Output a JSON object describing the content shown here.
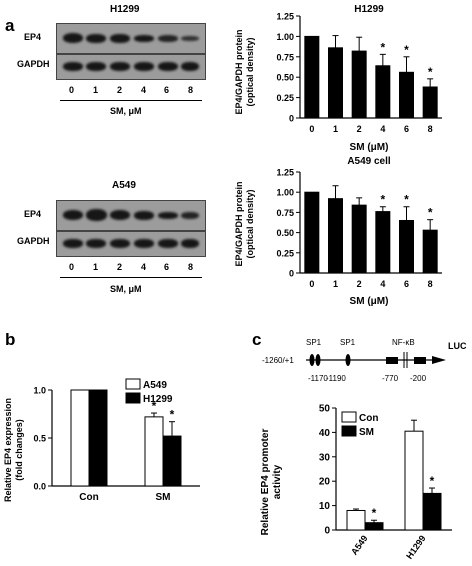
{
  "panel_a": {
    "letter": "a",
    "blot_h1299": {
      "title": "H1299",
      "row_labels": [
        "EP4",
        "GAPDH"
      ],
      "lanes": [
        "0",
        "1",
        "2",
        "4",
        "6",
        "8"
      ],
      "xlabel": "SM, μM"
    },
    "blot_a549": {
      "title": "A549",
      "row_labels": [
        "EP4",
        "GAPDH"
      ],
      "lanes": [
        "0",
        "1",
        "2",
        "4",
        "6",
        "8"
      ],
      "xlabel": "SM, μM"
    }
  },
  "panel_b": {
    "letter": "b"
  },
  "panel_c": {
    "letter": "c",
    "promoter": {
      "range_label": "-1260/+1",
      "site_labels": [
        "SP1",
        "SP1",
        "NF-κB"
      ],
      "position_labels": [
        "-1170",
        "-1190",
        "-770",
        "-200"
      ],
      "reporter": "LUC"
    }
  },
  "chart_data": [
    {
      "type": "bar",
      "title": "H1299",
      "categories": [
        "0",
        "1",
        "2",
        "4",
        "6",
        "8"
      ],
      "values": [
        1.0,
        0.86,
        0.82,
        0.64,
        0.56,
        0.38
      ],
      "errors": [
        0.0,
        0.15,
        0.17,
        0.14,
        0.19,
        0.1
      ],
      "significant": [
        false,
        false,
        false,
        true,
        true,
        true
      ],
      "xlabel": "SM (μM)",
      "ylabel": "EP4/GAPDH protein (optical density)",
      "ylim": [
        0,
        1.25
      ],
      "yticks": [
        "0",
        "0.25",
        "0.50",
        "0.75",
        "1.00",
        "1.25"
      ],
      "bar_color": "#000000"
    },
    {
      "type": "bar",
      "title": "A549 cell",
      "categories": [
        "0",
        "1",
        "2",
        "4",
        "6",
        "8"
      ],
      "values": [
        1.0,
        0.92,
        0.84,
        0.76,
        0.65,
        0.53
      ],
      "errors": [
        0.0,
        0.16,
        0.09,
        0.06,
        0.17,
        0.13
      ],
      "significant": [
        false,
        false,
        false,
        true,
        true,
        true
      ],
      "xlabel": "SM (μM)",
      "ylabel": "EP4/GAPDH protein (optical density)",
      "ylim": [
        0,
        1.25
      ],
      "yticks": [
        "0",
        "0.25",
        "0.50",
        "0.75",
        "1.00",
        "1.25"
      ],
      "bar_color": "#000000"
    },
    {
      "type": "bar",
      "categories": [
        "Con",
        "SM"
      ],
      "series": [
        {
          "name": "A549",
          "values": [
            1.0,
            0.72
          ],
          "errors": [
            0.0,
            0.04
          ],
          "significant": [
            false,
            true
          ],
          "color": "#ffffff"
        },
        {
          "name": "H1299",
          "values": [
            1.0,
            0.52
          ],
          "errors": [
            0.0,
            0.15
          ],
          "significant": [
            false,
            true
          ],
          "color": "#000000"
        }
      ],
      "xlabel": "",
      "ylabel": "Relative EP4 expression (fold changes)",
      "ylim": [
        0,
        1.0
      ],
      "yticks": [
        "0.0",
        "0.5",
        "1.0"
      ],
      "legend": "top-left"
    },
    {
      "type": "bar",
      "categories": [
        "A549",
        "H1299"
      ],
      "series": [
        {
          "name": "Con",
          "values": [
            8,
            40.5
          ],
          "errors": [
            0.6,
            4.5
          ],
          "significant": [
            false,
            false
          ],
          "color": "#ffffff"
        },
        {
          "name": "SM",
          "values": [
            3,
            15
          ],
          "errors": [
            1.0,
            2.2
          ],
          "significant": [
            true,
            true
          ],
          "color": "#000000"
        }
      ],
      "xlabel": "",
      "ylabel": "Relative EP4 promoter activity",
      "ylim": [
        0,
        50
      ],
      "yticks": [
        "0",
        "10",
        "20",
        "30",
        "40",
        "50"
      ],
      "legend": "top-left"
    }
  ]
}
